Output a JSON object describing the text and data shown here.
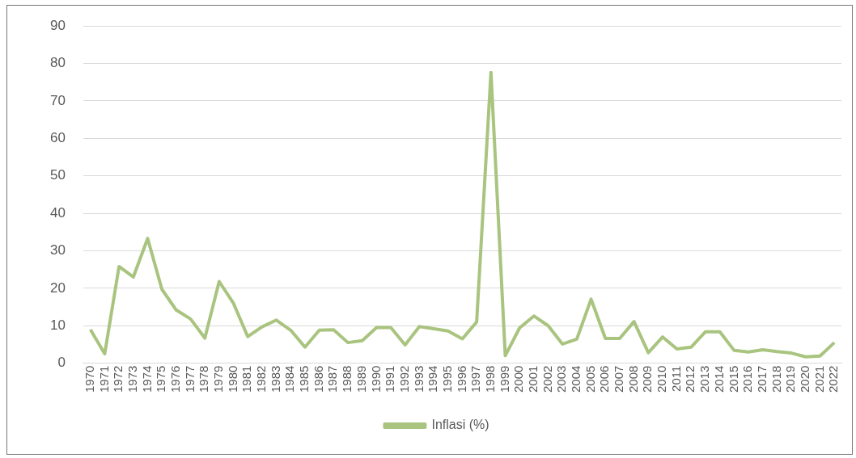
{
  "chart_data": {
    "type": "line",
    "categories": [
      "1970",
      "1971",
      "1972",
      "1973",
      "1974",
      "1975",
      "1976",
      "1977",
      "1978",
      "1979",
      "1980",
      "1981",
      "1982",
      "1983",
      "1984",
      "1985",
      "1986",
      "1987",
      "1988",
      "1989",
      "1990",
      "1991",
      "1992",
      "1993",
      "1994",
      "1995",
      "1996",
      "1997",
      "1998",
      "1999",
      "2000",
      "2001",
      "2002",
      "2003",
      "2004",
      "2005",
      "2006",
      "2007",
      "2008",
      "2009",
      "2010",
      "2011",
      "2012",
      "2013",
      "2014",
      "2015",
      "2016",
      "2017",
      "2018",
      "2019",
      "2020",
      "2021",
      "2022"
    ],
    "series": [
      {
        "name": "Inflasi (%)",
        "color": "#a9c47f",
        "values": [
          9,
          2.5,
          25.8,
          23,
          33.3,
          19.7,
          14.2,
          11.8,
          6.7,
          21.8,
          16,
          7.1,
          9.7,
          11.5,
          8.8,
          4.3,
          8.8,
          8.9,
          5.5,
          6,
          9.5,
          9.5,
          4.9,
          9.8,
          9.2,
          8.6,
          6.5,
          11,
          77.6,
          2,
          9.4,
          12.6,
          10,
          5.1,
          6.4,
          17.1,
          6.6,
          6.6,
          11.1,
          2.8,
          7,
          3.8,
          4.3,
          8.4,
          8.4,
          3.4,
          3,
          3.6,
          3.1,
          2.7,
          1.7,
          1.9,
          5.5
        ]
      }
    ],
    "ylim": [
      0,
      90
    ],
    "yticks": [
      0,
      10,
      20,
      30,
      40,
      50,
      60,
      70,
      80,
      90
    ],
    "grid": "y",
    "legend": "bottom",
    "marker": "none",
    "line_style": "solid"
  }
}
